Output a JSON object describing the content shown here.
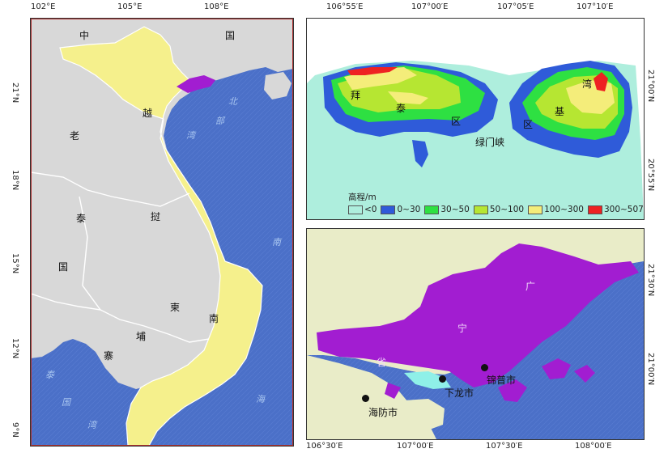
{
  "left_map": {
    "lon_ticks": [
      "102°E",
      "105°E",
      "108°E"
    ],
    "lat_ticks": [
      "21°N",
      "18°N",
      "15°N",
      "12°N",
      "9°N"
    ],
    "labels": {
      "china_1": "中",
      "china_2": "国",
      "beibu_1": "北",
      "beibu_2": "部",
      "beibu_3": "湾",
      "laos": "老",
      "viet_1": "越",
      "viet_2": "南",
      "thai_1": "泰",
      "thai_2": "国",
      "cam_1": "柬",
      "cam_2": "埔",
      "cam_3": "寨",
      "laos_2": "挝",
      "scs_1": "南",
      "scs_2": "海",
      "gulf_1": "泰",
      "gulf_2": "国",
      "gulf_3": "湾"
    },
    "colors": {
      "land": "#d9d9d9",
      "vietnam": "#f5f08c",
      "sea": "#4a6fc9",
      "border": "#ffffff",
      "study_area": "#a21dd1"
    }
  },
  "elev_map": {
    "lon_ticks": [
      "106°55′E",
      "107°00′E",
      "107°05′E",
      "107°10′E"
    ],
    "lat_ticks": [
      "21°00′N",
      "20°55′N"
    ],
    "labels": {
      "bai": "拜",
      "tai": "泰",
      "qu1": "区",
      "qu2": "区",
      "ji": "基",
      "wan": "湾",
      "lvmen": "绿门峡"
    },
    "legend": {
      "title": "高程/m",
      "items": [
        {
          "label": "<0",
          "color": "#aeeedd"
        },
        {
          "label": "0~30",
          "color": "#2f5bd9"
        },
        {
          "label": "30~50",
          "color": "#2ee042"
        },
        {
          "label": "50~100",
          "color": "#b6e632"
        },
        {
          "label": "100~300",
          "color": "#f4ed7a"
        },
        {
          "label": "300~507",
          "color": "#ee2222"
        }
      ]
    }
  },
  "region_map": {
    "lon_ticks": [
      "106°30′E",
      "107°00′E",
      "107°30′E",
      "108°00′E"
    ],
    "lat_ticks": [
      "21°30′N",
      "21°00′N"
    ],
    "labels": {
      "guang": "广",
      "ning": "宁",
      "sheng": "省",
      "xialong": "下龙市",
      "haifang": "海防市",
      "jinpu": "锦普市"
    },
    "colors": {
      "province": "#a21dd1",
      "land": "#e9ecc8",
      "sea": "#4a6fc9",
      "bay": "#8ff0e8"
    }
  }
}
